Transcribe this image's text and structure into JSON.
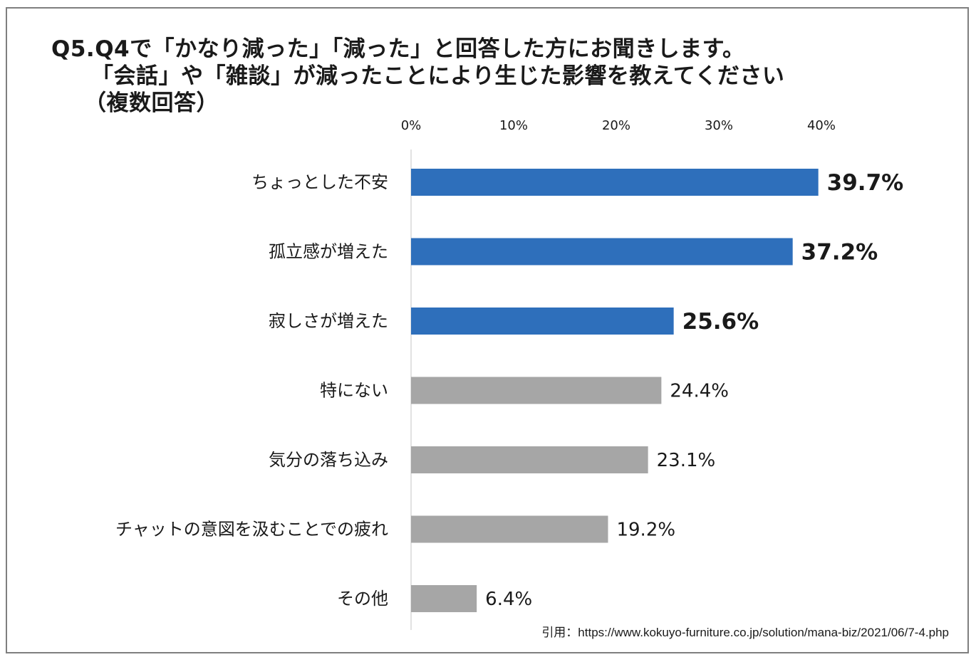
{
  "title": {
    "line1": "Q5.Q4で「かなり減った」「減った」と回答した方にお聞きします。",
    "line2": "「会話」や「雑談」が減ったことにより生じた影響を教えてください",
    "line3": "（複数回答）"
  },
  "source": "引用：https://www.kokuyo-furniture.co.jp/solution/mana-biz/2021/06/7-4.php",
  "colors": {
    "highlight": "#2e6fbb",
    "normal": "#a6a6a6",
    "axis": "#d9d9d9",
    "text": "#1a1a1a"
  },
  "chart_data": {
    "type": "bar",
    "orientation": "horizontal",
    "title": "Q5.Q4で「かなり減った」「減った」と回答した方にお聞きします。「会話」や「雑談」が減ったことにより生じた影響を教えてください（複数回答）",
    "xlim": [
      0,
      40
    ],
    "xticks": [
      "0%",
      "10%",
      "20%",
      "30%",
      "40%"
    ],
    "xtick_values": [
      0,
      10,
      20,
      30,
      40
    ],
    "legend": "none",
    "categories": [
      "ちょっとした不安",
      "孤立感が増えた",
      "寂しさが増えた",
      "特にない",
      "気分の落ち込み",
      "チャットの意図を汲むことでの疲れ",
      "その他"
    ],
    "values": [
      39.7,
      37.2,
      25.6,
      24.4,
      23.1,
      19.2,
      6.4
    ],
    "labels": [
      "39.7%",
      "37.2%",
      "25.6%",
      "24.4%",
      "23.1%",
      "19.2%",
      "6.4%"
    ],
    "highlighted": [
      true,
      true,
      true,
      false,
      false,
      false,
      false
    ]
  }
}
